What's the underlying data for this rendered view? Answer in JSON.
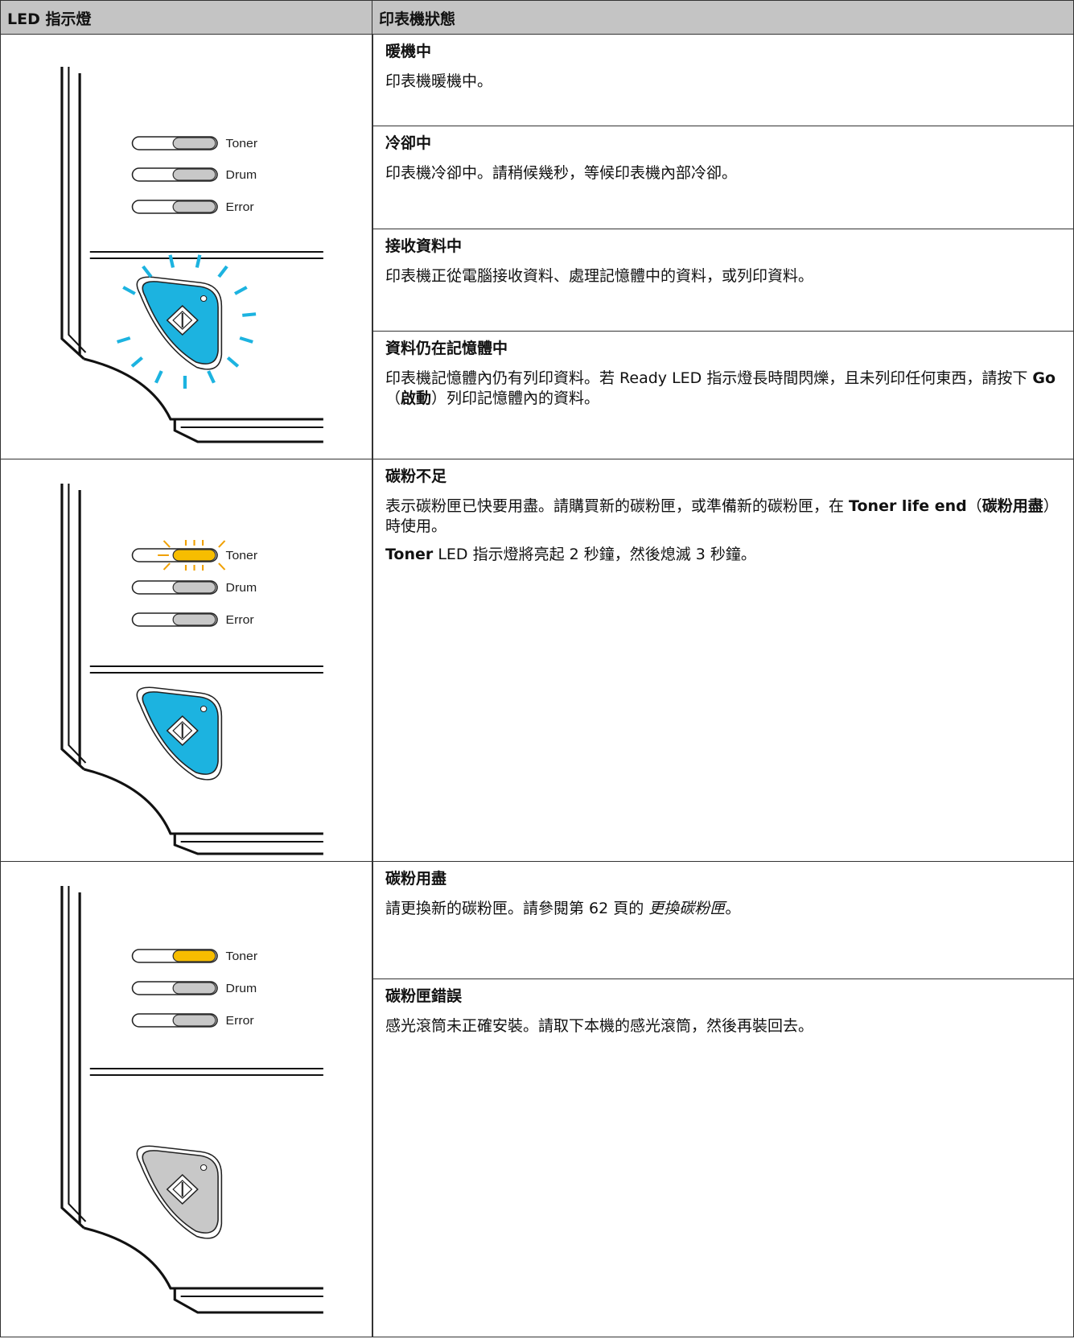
{
  "header": {
    "col1": "LED 指示燈",
    "col2": "印表機狀態"
  },
  "rows": [
    {
      "leds": [
        {
          "label": "Toner",
          "color": "#c8c8c8",
          "blinking": false
        },
        {
          "label": "Drum",
          "color": "#c8c8c8",
          "blinking": false
        },
        {
          "label": "Error",
          "color": "#c8c8c8",
          "blinking": false
        }
      ],
      "button": {
        "color": "#1cb3e0",
        "blinking": true
      },
      "statuses": [
        {
          "title": "暖機中",
          "paragraphs": [
            [
              "印表機暖機中。"
            ]
          ]
        },
        {
          "title": "冷卻中",
          "paragraphs": [
            [
              "印表機冷卻中。請稍候幾秒，等候印表機內部冷卻。"
            ]
          ]
        },
        {
          "title": "接收資料中",
          "paragraphs": [
            [
              "印表機正從電腦接收資料、處理記憶體中的資料，或列印資料。"
            ]
          ]
        },
        {
          "title": "資料仍在記憶體中",
          "paragraphs": [
            [
              "印表機記憶體內仍有列印資料。若 Ready LED 指示燈長時間閃爍，且未列印任何東西，請按下 ",
              {
                "bold": "Go"
              },
              "（",
              {
                "bold": "啟動"
              },
              "）列印記憶體內的資料。"
            ]
          ]
        }
      ]
    },
    {
      "leds": [
        {
          "label": "Toner",
          "color": "#f7bd00",
          "blinking": true
        },
        {
          "label": "Drum",
          "color": "#c8c8c8",
          "blinking": false
        },
        {
          "label": "Error",
          "color": "#c8c8c8",
          "blinking": false
        }
      ],
      "button": {
        "color": "#1cb3e0",
        "blinking": false
      },
      "statuses": [
        {
          "title": "碳粉不足",
          "paragraphs": [
            [
              "表示碳粉匣已快要用盡。請購買新的碳粉匣，或準備新的碳粉匣，在 ",
              {
                "bold": "Toner life end"
              },
              "（",
              {
                "bold": "碳粉用盡"
              },
              "）時使用。"
            ],
            [
              {
                "bold": "Toner"
              },
              " LED 指示燈將亮起 2 秒鐘，然後熄滅 3 秒鐘。"
            ]
          ]
        }
      ]
    },
    {
      "leds": [
        {
          "label": "Toner",
          "color": "#f7bd00",
          "blinking": false
        },
        {
          "label": "Drum",
          "color": "#c8c8c8",
          "blinking": false
        },
        {
          "label": "Error",
          "color": "#c8c8c8",
          "blinking": false
        }
      ],
      "button": {
        "color": "#c8c8c8",
        "blinking": false
      },
      "statuses": [
        {
          "title": "碳粉用盡",
          "paragraphs": [
            [
              "請更換新的碳粉匣。請參閱第 62 頁的 ",
              {
                "italic": "更換碳粉匣"
              },
              "。"
            ]
          ]
        },
        {
          "title": "碳粉匣錯誤",
          "paragraphs": [
            [
              "感光滾筒未正確安裝。請取下本機的感光滾筒，然後再裝回去。"
            ]
          ]
        }
      ]
    }
  ]
}
